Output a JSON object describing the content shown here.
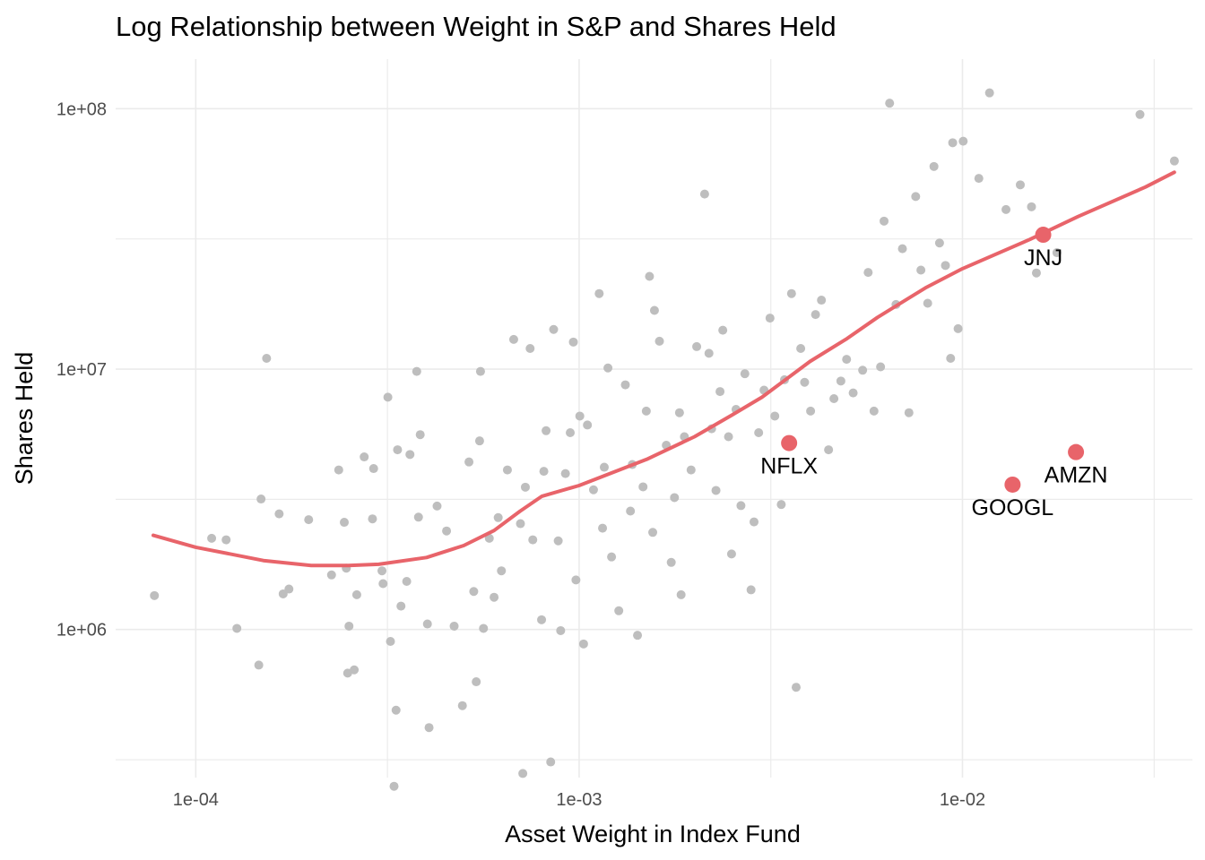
{
  "chart_data": {
    "type": "scatter",
    "title": "Log Relationship between Weight in S&P and Shares Held",
    "xlabel": "Asset Weight in Index Fund",
    "ylabel": "Shares Held",
    "x_scale": "log10",
    "y_scale": "log10",
    "xlim": [
      6.18e-05,
      0.0398
    ],
    "ylim": [
      270000,
      155000000
    ],
    "x_ticks": [
      {
        "value": 0.0001,
        "label": "1e-04"
      },
      {
        "value": 0.001,
        "label": "1e-03"
      },
      {
        "value": 0.01,
        "label": "1e-02"
      }
    ],
    "y_ticks": [
      {
        "value": 1000000,
        "label": "1e+06"
      },
      {
        "value": 10000000,
        "label": "1e+07"
      },
      {
        "value": 100000000,
        "label": "1e+08"
      }
    ],
    "grid": true,
    "legend": "none",
    "colors": {
      "points": "#bebebe",
      "highlight": "#e8646a",
      "smooth_line": "#e8646a",
      "grid": "#ebebeb"
    },
    "series": [
      {
        "role": "all holdings",
        "points": [
          [
            7.8e-05,
            1350000
          ],
          [
            0.00011,
            2240000
          ],
          [
            0.00012,
            2210000
          ],
          [
            0.000128,
            1010000
          ],
          [
            0.000146,
            730000
          ],
          [
            0.000148,
            3170000
          ],
          [
            0.000153,
            11000000
          ],
          [
            0.000165,
            2780000
          ],
          [
            0.000169,
            1370000
          ],
          [
            0.000175,
            1430000
          ],
          [
            0.000197,
            2640000
          ],
          [
            0.000226,
            1620000
          ],
          [
            0.000236,
            4100000
          ],
          [
            0.000244,
            2580000
          ],
          [
            0.000247,
            1720000
          ],
          [
            0.000251,
            1030000
          ],
          [
            0.000249,
            680000
          ],
          [
            0.000259,
            700000
          ],
          [
            0.000263,
            1360000
          ],
          [
            0.000275,
            4600000
          ],
          [
            0.000289,
            2660000
          ],
          [
            0.000291,
            4150000
          ],
          [
            0.000306,
            1680000
          ],
          [
            0.000308,
            1500000
          ],
          [
            0.000317,
            7800000
          ],
          [
            0.000322,
            900000
          ],
          [
            0.000329,
            250000
          ],
          [
            0.000333,
            490000
          ],
          [
            0.000336,
            4900000
          ],
          [
            0.000343,
            1230000
          ],
          [
            0.000355,
            1530000
          ],
          [
            0.000362,
            4700000
          ],
          [
            0.000377,
            9800000
          ],
          [
            0.000381,
            2700000
          ],
          [
            0.000385,
            5600000
          ],
          [
            0.000402,
            1050000
          ],
          [
            0.000406,
            420000
          ],
          [
            0.000426,
            2980000
          ],
          [
            0.000451,
            2390000
          ],
          [
            0.000472,
            1030000
          ],
          [
            0.000496,
            510000
          ],
          [
            0.000516,
            4400000
          ],
          [
            0.000531,
            1400000
          ],
          [
            0.000539,
            630000
          ],
          [
            0.00055,
            5300000
          ],
          [
            0.000553,
            9800000
          ],
          [
            0.000563,
            1010000
          ],
          [
            0.000583,
            2240000
          ],
          [
            0.0006,
            1330000
          ],
          [
            0.000615,
            2690000
          ],
          [
            0.000627,
            1680000
          ],
          [
            0.00065,
            4100000
          ],
          [
            0.000675,
            13000000
          ],
          [
            0.000703,
            2550000
          ],
          [
            0.000713,
            280000
          ],
          [
            0.000724,
            3520000
          ],
          [
            0.000745,
            12000000
          ],
          [
            0.000757,
            2210000
          ],
          [
            0.000798,
            1090000
          ],
          [
            0.000809,
            4050000
          ],
          [
            0.00082,
            5800000
          ],
          [
            0.000843,
            310000
          ],
          [
            0.000858,
            14200000
          ],
          [
            0.000882,
            2190000
          ],
          [
            0.000895,
            990000
          ],
          [
            0.000921,
            3970000
          ],
          [
            0.000948,
            5700000
          ],
          [
            0.000966,
            12700000
          ],
          [
            0.000981,
            1550000
          ],
          [
            0.001004,
            6600000
          ],
          [
            0.001027,
            880000
          ],
          [
            0.001051,
            6100000
          ],
          [
            0.00109,
            3440000
          ],
          [
            0.001128,
            19500000
          ],
          [
            0.001151,
            2450000
          ],
          [
            0.001163,
            4200000
          ],
          [
            0.001189,
            10100000
          ],
          [
            0.001215,
            1900000
          ],
          [
            0.001269,
            1180000
          ],
          [
            0.00132,
            8700000
          ],
          [
            0.001361,
            2850000
          ],
          [
            0.001376,
            4300000
          ],
          [
            0.00142,
            950000
          ],
          [
            0.001468,
            3530000
          ],
          [
            0.001497,
            6900000
          ],
          [
            0.001526,
            22700000
          ],
          [
            0.001556,
            2360000
          ],
          [
            0.001572,
            16800000
          ],
          [
            0.00162,
            12800000
          ],
          [
            0.001688,
            5100000
          ],
          [
            0.001739,
            1810000
          ],
          [
            0.001773,
            3210000
          ],
          [
            0.001827,
            6800000
          ],
          [
            0.001845,
            1360000
          ],
          [
            0.001882,
            5500000
          ],
          [
            0.001959,
            4100000
          ],
          [
            0.002026,
            12200000
          ],
          [
            0.002125,
            47000000
          ],
          [
            0.002181,
            11500000
          ],
          [
            0.002216,
            5900000
          ],
          [
            0.002275,
            3420000
          ],
          [
            0.002331,
            8200000
          ],
          [
            0.00237,
            14100000
          ],
          [
            0.002453,
            5500000
          ],
          [
            0.002498,
            1950000
          ],
          [
            0.002566,
            7000000
          ],
          [
            0.002643,
            2990000
          ],
          [
            0.002706,
            9600000
          ],
          [
            0.002808,
            1420000
          ],
          [
            0.002859,
            2590000
          ],
          [
            0.00294,
            5700000
          ],
          [
            0.003036,
            8300000
          ],
          [
            0.003147,
            15700000
          ],
          [
            0.003239,
            6600000
          ],
          [
            0.003367,
            3020000
          ],
          [
            0.003433,
            9100000
          ],
          [
            0.003581,
            19500000
          ],
          [
            0.003682,
            600000
          ],
          [
            0.003785,
            12000000
          ],
          [
            0.003874,
            8900000
          ],
          [
            0.004016,
            6900000
          ],
          [
            0.004137,
            16200000
          ],
          [
            0.004286,
            18400000
          ],
          [
            0.004474,
            4900000
          ],
          [
            0.00462,
            7700000
          ],
          [
            0.004817,
            9000000
          ],
          [
            0.004985,
            10900000
          ],
          [
            0.005186,
            8100000
          ],
          [
            0.00549,
            9900000
          ],
          [
            0.005675,
            23500000
          ],
          [
            0.005877,
            6900000
          ],
          [
            0.006114,
            10200000
          ],
          [
            0.006243,
            37000000
          ],
          [
            0.006455,
            105000000
          ],
          [
            0.006707,
            17700000
          ],
          [
            0.006971,
            29000000
          ],
          [
            0.00725,
            6800000
          ],
          [
            0.00755,
            46000000
          ],
          [
            0.00779,
            24000000
          ],
          [
            0.008114,
            17900000
          ],
          [
            0.008425,
            60000000
          ],
          [
            0.008712,
            30500000
          ],
          [
            0.009028,
            25000000
          ],
          [
            0.009312,
            11000000
          ],
          [
            0.009429,
            74000000
          ],
          [
            0.00974,
            14300000
          ],
          [
            0.010043,
            75000000
          ],
          [
            0.011032,
            54000000
          ],
          [
            0.011764,
            115000000
          ],
          [
            0.012987,
            41000000
          ],
          [
            0.014152,
            51000000
          ],
          [
            0.015137,
            42000000
          ],
          [
            0.01559,
            23400000
          ],
          [
            0.017633,
            28000000
          ],
          [
            0.029042,
            95000000
          ],
          [
            0.03571,
            63000000
          ]
        ]
      },
      {
        "role": "highlighted",
        "points": [
          {
            "label": "JNJ",
            "x": 0.01624,
            "y": 32800000
          },
          {
            "label": "NFLX",
            "x": 0.00353,
            "y": 5200000
          },
          {
            "label": "AMZN",
            "x": 0.01977,
            "y": 4800000
          },
          {
            "label": "GOOGL",
            "x": 0.01351,
            "y": 3600000
          }
        ]
      },
      {
        "role": "smooth fit",
        "line": [
          [
            7.75e-05,
            2300000
          ],
          [
            0.0001,
            2070000
          ],
          [
            0.00015,
            1840000
          ],
          [
            0.0002,
            1760000
          ],
          [
            0.00025,
            1760000
          ],
          [
            0.0003,
            1780000
          ],
          [
            0.0004,
            1890000
          ],
          [
            0.0005,
            2100000
          ],
          [
            0.0006,
            2400000
          ],
          [
            0.0007,
            2840000
          ],
          [
            0.0008,
            3250000
          ],
          [
            0.001,
            3570000
          ],
          [
            0.0015,
            4500000
          ],
          [
            0.002,
            5500000
          ],
          [
            0.0025,
            6650000
          ],
          [
            0.003,
            7800000
          ],
          [
            0.004,
            10700000
          ],
          [
            0.005,
            13100000
          ],
          [
            0.006,
            15800000
          ],
          [
            0.008,
            20500000
          ],
          [
            0.01,
            24300000
          ],
          [
            0.015,
            31500000
          ],
          [
            0.02,
            38500000
          ],
          [
            0.03,
            50000000
          ],
          [
            0.0357,
            57000000
          ]
        ]
      }
    ]
  }
}
